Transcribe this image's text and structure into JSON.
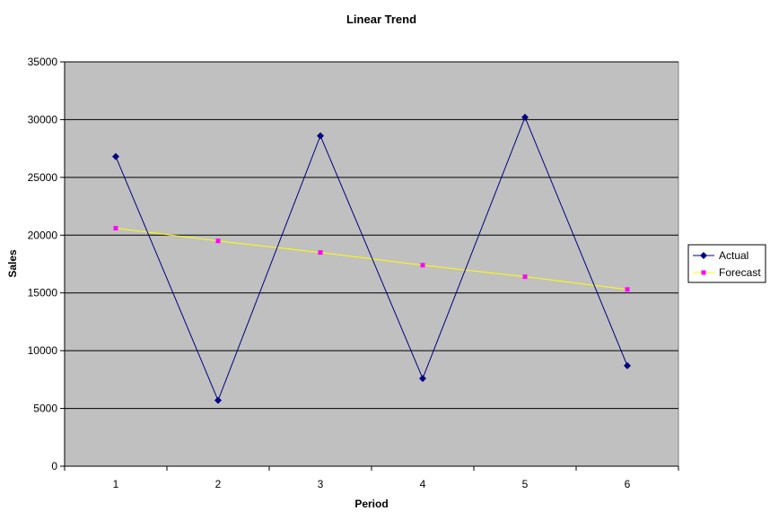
{
  "chart_data": {
    "type": "line",
    "title": "Linear Trend",
    "xlabel": "Period",
    "ylabel": "Sales",
    "x": [
      1,
      2,
      3,
      4,
      5,
      6
    ],
    "ylim": [
      0,
      35000
    ],
    "yticks": [
      0,
      5000,
      10000,
      15000,
      20000,
      25000,
      30000,
      35000
    ],
    "grid": true,
    "legend_position": "right",
    "plot_background": "#c0c0c0",
    "series": [
      {
        "name": "Actual",
        "values": [
          26800,
          5700,
          28600,
          7600,
          30200,
          8700
        ],
        "color": "#000080",
        "marker": "diamond"
      },
      {
        "name": "Forecast",
        "values": [
          20600,
          19500,
          18500,
          17400,
          16400,
          15300
        ],
        "color": "#ffff00",
        "marker_color": "#ff00ff",
        "marker": "square"
      }
    ]
  }
}
